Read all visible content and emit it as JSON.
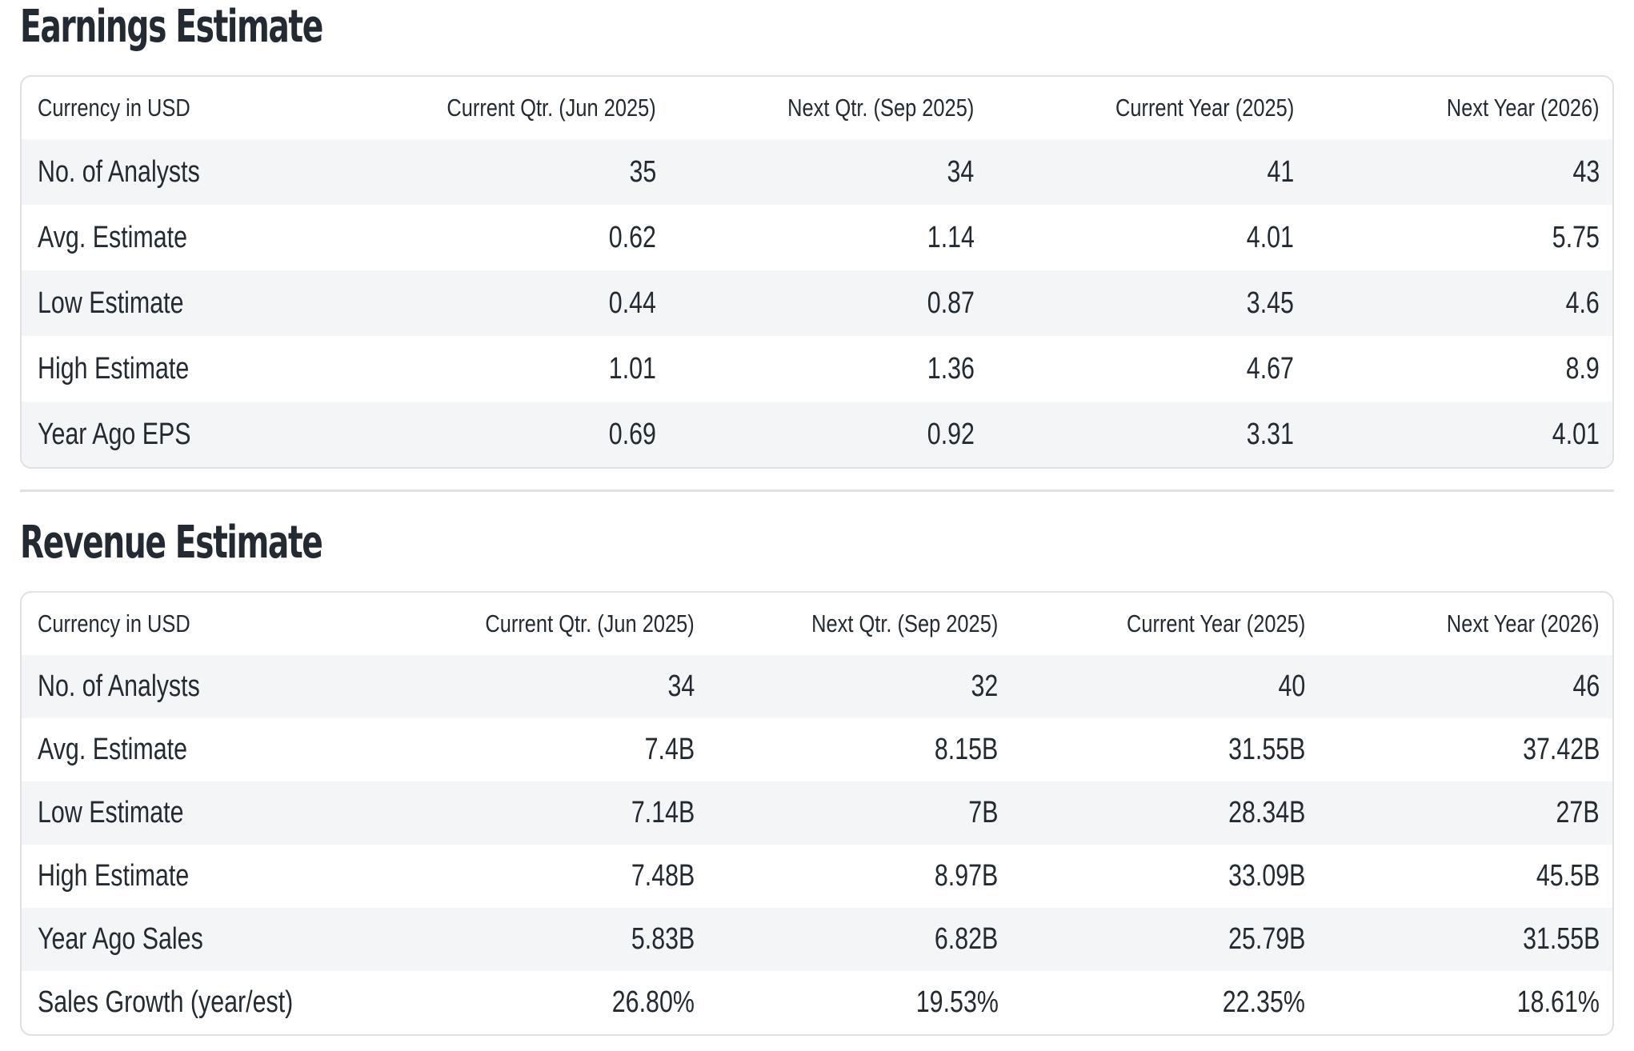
{
  "colors": {
    "text": "#232a31",
    "stripe": "#f4f5f7",
    "border": "#e0e0e5",
    "background": "#ffffff"
  },
  "sections": [
    {
      "title": "Earnings Estimate",
      "table": {
        "columns": [
          "Currency in USD",
          "Current Qtr. (Jun 2025)",
          "Next Qtr. (Sep 2025)",
          "Current Year (2025)",
          "Next Year (2026)"
        ],
        "rows": [
          {
            "label": "No. of Analysts",
            "values": [
              "35",
              "34",
              "41",
              "43"
            ]
          },
          {
            "label": "Avg. Estimate",
            "values": [
              "0.62",
              "1.14",
              "4.01",
              "5.75"
            ]
          },
          {
            "label": "Low Estimate",
            "values": [
              "0.44",
              "0.87",
              "3.45",
              "4.6"
            ]
          },
          {
            "label": "High Estimate",
            "values": [
              "1.01",
              "1.36",
              "4.67",
              "8.9"
            ]
          },
          {
            "label": "Year Ago EPS",
            "values": [
              "0.69",
              "0.92",
              "3.31",
              "4.01"
            ]
          }
        ]
      }
    },
    {
      "title": "Revenue Estimate",
      "table": {
        "columns": [
          "Currency in USD",
          "Current Qtr. (Jun 2025)",
          "Next Qtr. (Sep 2025)",
          "Current Year (2025)",
          "Next Year (2026)"
        ],
        "rows": [
          {
            "label": "No. of Analysts",
            "values": [
              "34",
              "32",
              "40",
              "46"
            ]
          },
          {
            "label": "Avg. Estimate",
            "values": [
              "7.4B",
              "8.15B",
              "31.55B",
              "37.42B"
            ]
          },
          {
            "label": "Low Estimate",
            "values": [
              "7.14B",
              "7B",
              "28.34B",
              "27B"
            ]
          },
          {
            "label": "High Estimate",
            "values": [
              "7.48B",
              "8.97B",
              "33.09B",
              "45.5B"
            ]
          },
          {
            "label": "Year Ago Sales",
            "values": [
              "5.83B",
              "6.82B",
              "25.79B",
              "31.55B"
            ]
          },
          {
            "label": "Sales Growth (year/est)",
            "values": [
              "26.80%",
              "19.53%",
              "22.35%",
              "18.61%"
            ]
          }
        ]
      }
    }
  ]
}
